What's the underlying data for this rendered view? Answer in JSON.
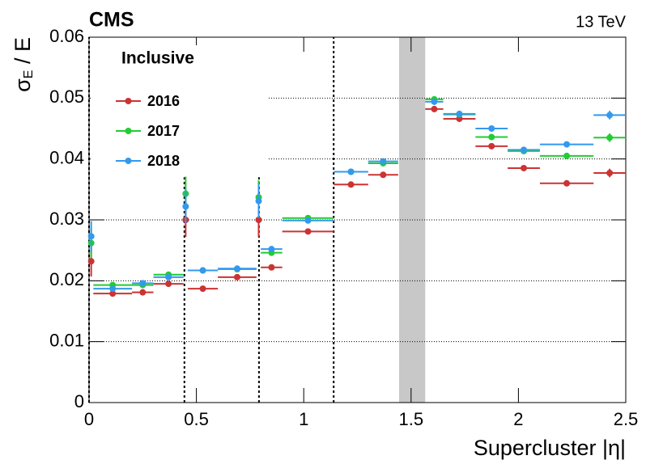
{
  "chart_data": {
    "type": "scatter",
    "experiment": "CMS",
    "energy": "13 TeV",
    "annotation": "Inclusive",
    "xlabel": "Supercluster |η|",
    "ylabel": {
      "symbol": "σ",
      "subscript": "E",
      "rest": " / E"
    },
    "x": [
      0.01,
      0.11,
      0.25,
      0.37,
      0.45,
      0.53,
      0.69,
      0.79,
      0.85,
      1.02,
      1.22,
      1.37,
      1.608,
      1.725,
      1.875,
      2.025,
      2.225,
      2.425
    ],
    "xerr": [
      0.01,
      0.09,
      0.05,
      0.07,
      0.01,
      0.07,
      0.09,
      0.01,
      0.05,
      0.12,
      0.08,
      0.07,
      0.042,
      0.075,
      0.075,
      0.075,
      0.125,
      0.075
    ],
    "series": [
      {
        "name": "2016",
        "color": "#cc3333",
        "values": [
          0.0232,
          0.0179,
          0.0181,
          0.0195,
          0.03,
          0.0187,
          0.0206,
          0.03,
          0.0222,
          0.0281,
          0.0358,
          0.0374,
          0.0482,
          0.0466,
          0.0421,
          0.0385,
          0.036,
          0.0377
        ],
        "yerr": [
          0.0025,
          0.0003,
          0.0003,
          0.0003,
          0.0028,
          0.0003,
          0.0003,
          0.0028,
          0.0003,
          0.0003,
          0.0003,
          0.0004,
          0.0005,
          0.0004,
          0.0004,
          0.0004,
          0.0004,
          0.0007
        ]
      },
      {
        "name": "2017",
        "color": "#22cc33",
        "values": [
          0.0262,
          0.0193,
          0.0193,
          0.021,
          0.0343,
          0.0217,
          0.0219,
          0.0337,
          0.0246,
          0.0303,
          0.0379,
          0.0393,
          0.0498,
          0.0473,
          0.0436,
          0.0413,
          0.0405,
          0.0435
        ],
        "yerr": [
          0.0025,
          0.0003,
          0.0003,
          0.0003,
          0.0028,
          0.0003,
          0.0003,
          0.0028,
          0.0003,
          0.0003,
          0.0003,
          0.0004,
          0.0005,
          0.0004,
          0.0004,
          0.0004,
          0.0004,
          0.0007
        ]
      },
      {
        "name": "2018",
        "color": "#3399ee",
        "values": [
          0.0273,
          0.0187,
          0.0196,
          0.0206,
          0.0322,
          0.0217,
          0.022,
          0.0331,
          0.0252,
          0.0299,
          0.0379,
          0.0396,
          0.0494,
          0.0474,
          0.045,
          0.0415,
          0.0424,
          0.0472
        ],
        "yerr": [
          0.0025,
          0.0003,
          0.0003,
          0.0003,
          0.0028,
          0.0003,
          0.0003,
          0.0028,
          0.0003,
          0.0003,
          0.0003,
          0.0004,
          0.0005,
          0.0004,
          0.0004,
          0.0004,
          0.0004,
          0.0007
        ]
      }
    ],
    "boundaries": [
      {
        "x": 0,
        "top": 0.06
      },
      {
        "x": 0.4442,
        "top": 0.037
      },
      {
        "x": 0.7915,
        "top": 0.037
      },
      {
        "x": 1.1395,
        "top": 0.06
      }
    ],
    "excluded_band": [
      1.4442,
      1.566
    ],
    "xlim": [
      0,
      2.5
    ],
    "xticks": [
      0,
      0.5,
      1,
      1.5,
      2,
      2.5
    ],
    "ylim": [
      0,
      0.06
    ],
    "yticks": [
      0,
      0.01,
      0.02,
      0.03,
      0.04,
      0.05,
      0.06
    ],
    "grid": true,
    "legend": "upper-left"
  }
}
